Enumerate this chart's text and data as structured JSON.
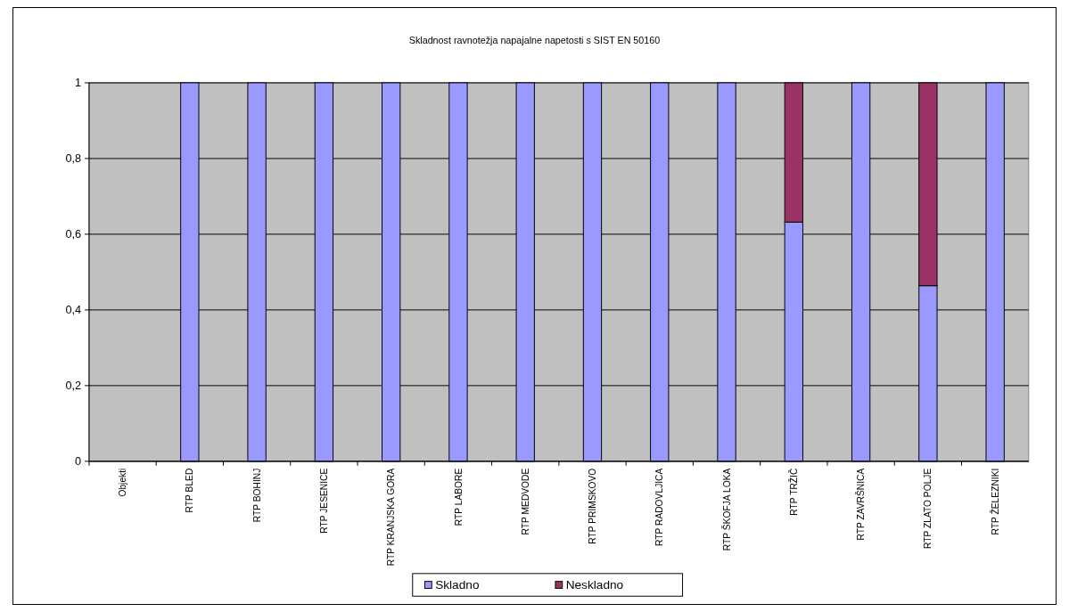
{
  "chart_data": {
    "type": "bar",
    "title": "Skladnost ravnotežja napajalne napetosti s SIST EN 50160",
    "categories": [
      "Objekti",
      "RTP BLED",
      "RTP BOHINJ",
      "RTP JESENICE",
      "RTP KRANJSKA GORA",
      "RTP LABORE",
      "RTP MEDVODE",
      "RTP PRIMSKOVO",
      "RTP RADOVLJICA",
      "RTP ŠKOFJA LOKA",
      "RTP TRŽIČ",
      "RTP ZAVRŠNICA",
      "RTP ZLATO POLJE",
      "RTP ŽELEZNIKI"
    ],
    "stacked": true,
    "series": [
      {
        "name": "Skladno",
        "color": "#9999ff",
        "values": [
          null,
          1,
          1,
          1,
          1,
          1,
          1,
          1,
          1,
          1,
          0.632,
          1,
          0.464,
          1
        ]
      },
      {
        "name": "Neskladno",
        "color": "#993366",
        "values": [
          null,
          0,
          0,
          0,
          0,
          0,
          0,
          0,
          0,
          0,
          0.368,
          0,
          0.536,
          0
        ]
      }
    ],
    "ylim": [
      0,
      1
    ],
    "yticks": [
      0,
      {
        "value": 0.2,
        "label": "0,2"
      },
      {
        "value": 0.4,
        "label": "0,4"
      },
      {
        "value": 0.6,
        "label": "0,6"
      },
      {
        "value": 0.8,
        "label": "0,8"
      },
      1
    ],
    "grid": "y",
    "legend": "bottom"
  }
}
